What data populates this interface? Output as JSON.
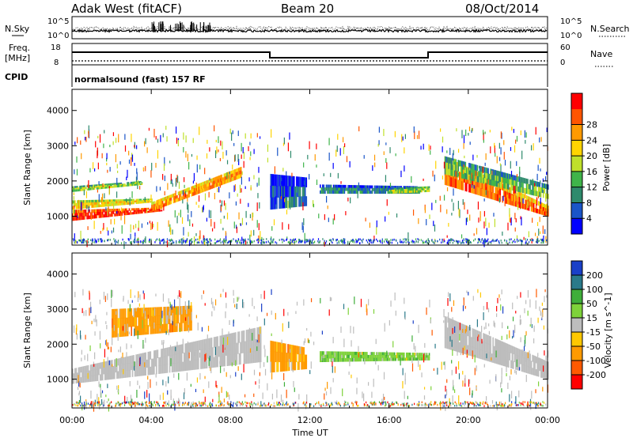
{
  "header": {
    "station": "Adak West (fitACF)",
    "beam": "Beam 20",
    "date": "08/Oct/2014"
  },
  "top_panels": {
    "nsky_label": "N.Sky",
    "nsearch_label": "N.Search",
    "noise_left_ticks": [
      "10^5",
      "10^0"
    ],
    "noise_right_ticks": [
      "10^5",
      "10^0"
    ],
    "freq_label_1": "Freq.",
    "freq_label_2": "[MHz]",
    "freq_ticks": [
      "18",
      "8"
    ],
    "nave_label": "Nave",
    "nave_ticks": [
      "60",
      "0"
    ],
    "cpid_label": "CPID",
    "cpid_value": "normalsound (fast) 157 RF"
  },
  "colors": {
    "power_scale": [
      "#0000ff",
      "#1a55c8",
      "#2e8a6c",
      "#3fb44a",
      "#bfe02a",
      "#ffd400",
      "#ff9a00",
      "#ff5500",
      "#ff0000"
    ],
    "velocity_scale": [
      "#ff0000",
      "#ff5a00",
      "#ff9a00",
      "#ffc800",
      "#bdbdbd",
      "#7ed23a",
      "#3fae3a",
      "#2a7a8a",
      "#1a40c8"
    ],
    "ground_scatter": "#bdbdbd"
  },
  "chart_data": [
    {
      "type": "heatmap",
      "title": "",
      "xlabel": "Time UT",
      "ylabel": "Slant Range [km]",
      "x_ticks": [
        "00:00",
        "04:00",
        "08:00",
        "12:00",
        "16:00",
        "20:00",
        "00:00"
      ],
      "x_hours": [
        0,
        4,
        8,
        12,
        16,
        20,
        24
      ],
      "y_ticks": [
        1000,
        2000,
        3000,
        4000
      ],
      "xlim": [
        0,
        24
      ],
      "ylim": [
        180,
        4600
      ],
      "colorbar_label": "Power [dB]",
      "colorbar_ticks": [
        4,
        8,
        12,
        16,
        20,
        24,
        28
      ],
      "colorbar_range": [
        0,
        30
      ],
      "bands": [
        {
          "t0": 0.0,
          "t1": 4.5,
          "r_low": [
            880,
            1150
          ],
          "r_high": [
            1180,
            1250
          ],
          "value": 28
        },
        {
          "t0": 0.0,
          "t1": 4.0,
          "r_low": [
            1200,
            1400
          ],
          "r_high": [
            1450,
            1500
          ],
          "value": 18
        },
        {
          "t0": 4.0,
          "t1": 8.5,
          "r_low": [
            1150,
            2100
          ],
          "r_high": [
            1400,
            2400
          ],
          "value": 22
        },
        {
          "t0": 0.0,
          "t1": 3.5,
          "r_low": [
            1700,
            1900
          ],
          "r_high": [
            1850,
            2000
          ],
          "value": 14
        },
        {
          "t0": 12.5,
          "t1": 17.5,
          "r_low": [
            1650,
            1650
          ],
          "r_high": [
            1900,
            1850
          ],
          "value": 8
        },
        {
          "t0": 16.0,
          "t1": 18.0,
          "r_low": [
            1650,
            1700
          ],
          "r_high": [
            1800,
            1850
          ],
          "value": 14
        },
        {
          "t0": 18.8,
          "t1": 24.0,
          "r_low": [
            1900,
            1000
          ],
          "r_high": [
            2700,
            1300
          ],
          "value": 24
        },
        {
          "t0": 18.8,
          "t1": 24.0,
          "r_low": [
            2200,
            1500
          ],
          "r_high": [
            2700,
            1900
          ],
          "value": 12
        },
        {
          "t0": 10.0,
          "t1": 11.8,
          "r_low": [
            1200,
            1300
          ],
          "r_high": [
            2200,
            2100
          ],
          "value": 6
        }
      ]
    },
    {
      "type": "heatmap",
      "title": "",
      "xlabel": "Time UT",
      "ylabel": "Slant Range [km]",
      "x_ticks": [
        "00:00",
        "04:00",
        "08:00",
        "12:00",
        "16:00",
        "20:00",
        "00:00"
      ],
      "x_hours": [
        0,
        4,
        8,
        12,
        16,
        20,
        24
      ],
      "y_ticks": [
        1000,
        2000,
        3000,
        4000
      ],
      "xlim": [
        0,
        24
      ],
      "ylim": [
        180,
        4600
      ],
      "colorbar_label": "Velocity [m s^-1]",
      "colorbar_ticks": [
        200,
        100,
        50,
        15,
        -15,
        -50,
        -100,
        -200
      ],
      "bands": [
        {
          "t0": 0.0,
          "t1": 9.5,
          "r_low": [
            880,
            1500
          ],
          "r_high": [
            1300,
            2500
          ],
          "value": "gs"
        },
        {
          "t0": 18.8,
          "t1": 24.0,
          "r_low": [
            1900,
            1000
          ],
          "r_high": [
            2800,
            1500
          ],
          "value": "gs"
        },
        {
          "t0": 12.5,
          "t1": 18.0,
          "r_low": [
            1500,
            1550
          ],
          "r_high": [
            1800,
            1750
          ],
          "value": 40
        },
        {
          "t0": 10.0,
          "t1": 11.8,
          "r_low": [
            1200,
            1300
          ],
          "r_high": [
            2100,
            1900
          ],
          "value": -60
        },
        {
          "t0": 2.0,
          "t1": 6.0,
          "r_low": [
            2200,
            2400
          ],
          "r_high": [
            3000,
            3100
          ],
          "value": -50
        }
      ]
    }
  ]
}
